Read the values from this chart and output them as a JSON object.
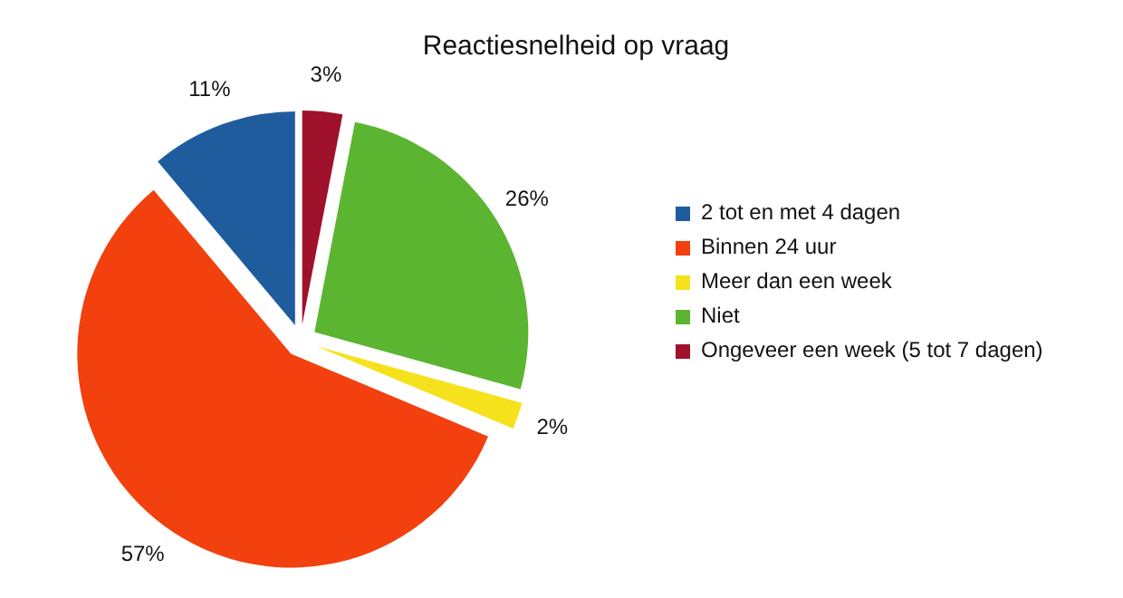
{
  "chart_data": {
    "type": "pie",
    "title": "Reactiesnelheid op vraag",
    "categories": [
      "2 tot en met 4 dagen",
      "Binnen 24 uur",
      "Meer dan een week",
      "Niet",
      "Ongeveer een week (5 tot 7 dagen)"
    ],
    "values": [
      11,
      57,
      2,
      26,
      3
    ],
    "value_labels": [
      "11%",
      "57%",
      "2%",
      "26%",
      "3%"
    ],
    "colors": [
      "#1f5c9e",
      "#f2400f",
      "#f5e21c",
      "#5bb531",
      "#a0112c"
    ],
    "legend": "right"
  }
}
